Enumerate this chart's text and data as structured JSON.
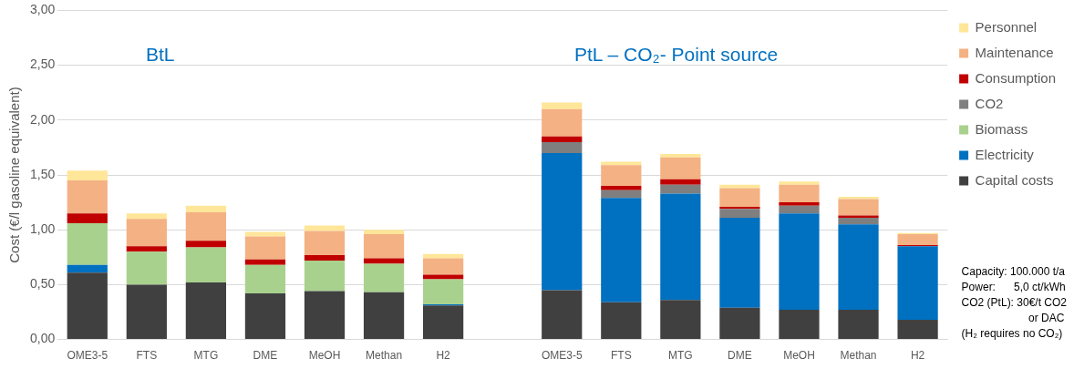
{
  "chart_data": {
    "type": "bar",
    "stacked": true,
    "ylabel": "Cost (€/l gasoline equivalent)",
    "categories": [
      "OME3-5",
      "FTS",
      "MTG",
      "DME",
      "MeOH",
      "Methan",
      "H2",
      null,
      "OME3-5",
      "FTS",
      "MTG",
      "DME",
      "MeOH",
      "Methan",
      "H2"
    ],
    "series": [
      {
        "name": "Capital costs",
        "color": "#404040",
        "values": [
          0.61,
          0.5,
          0.52,
          0.42,
          0.44,
          0.43,
          0.31,
          null,
          0.45,
          0.34,
          0.36,
          0.29,
          0.27,
          0.27,
          0.18
        ]
      },
      {
        "name": "Electricity",
        "color": "#0070c0",
        "values": [
          0.07,
          null,
          null,
          null,
          null,
          null,
          0.01,
          null,
          1.25,
          0.95,
          0.97,
          0.82,
          0.88,
          0.78,
          0.67
        ]
      },
      {
        "name": "Biomass",
        "color": "#a9d18e",
        "values": [
          0.38,
          0.3,
          0.32,
          0.26,
          0.28,
          0.26,
          0.23,
          null,
          null,
          null,
          null,
          null,
          null,
          null,
          null
        ]
      },
      {
        "name": "CO2",
        "color": "#7f7f7f",
        "values": [
          null,
          null,
          null,
          null,
          null,
          null,
          null,
          null,
          0.1,
          0.07,
          0.08,
          0.08,
          0.07,
          0.06,
          null
        ]
      },
      {
        "name": "Consumption",
        "color": "#c00000",
        "values": [
          0.09,
          0.05,
          0.06,
          0.05,
          0.05,
          0.05,
          0.04,
          null,
          0.05,
          0.04,
          0.05,
          0.02,
          0.03,
          0.02,
          0.01
        ]
      },
      {
        "name": "Maintenance",
        "color": "#f4b183",
        "values": [
          0.3,
          0.25,
          0.26,
          0.21,
          0.22,
          0.22,
          0.15,
          null,
          0.25,
          0.19,
          0.2,
          0.17,
          0.16,
          0.15,
          0.1
        ]
      },
      {
        "name": "Personnel",
        "color": "#ffe699",
        "values": [
          0.09,
          0.05,
          0.06,
          0.04,
          0.05,
          0.04,
          0.04,
          null,
          0.06,
          0.03,
          0.03,
          0.03,
          0.03,
          0.02,
          0.01
        ]
      }
    ],
    "ylim": [
      0,
      3
    ],
    "yticks": [
      {
        "value": 0,
        "label": "0,00"
      },
      {
        "value": 0.5,
        "label": "0,50"
      },
      {
        "value": 1,
        "label": "1,00"
      },
      {
        "value": 1.5,
        "label": "1,50"
      },
      {
        "value": 2,
        "label": "2,00"
      },
      {
        "value": 2.5,
        "label": "2,50"
      },
      {
        "value": 3,
        "label": "3,00"
      }
    ],
    "grid": "y",
    "legend": "right",
    "annotations": [
      "BtL",
      "PtL – CO₂- Point source",
      "Capacity: 100.000 t/a\nPower:      5,0 ct/kWh\nCO2 (PtL): 30€/t CO2\n                      or DAC\n(H₂ requires no CO₂)"
    ]
  }
}
